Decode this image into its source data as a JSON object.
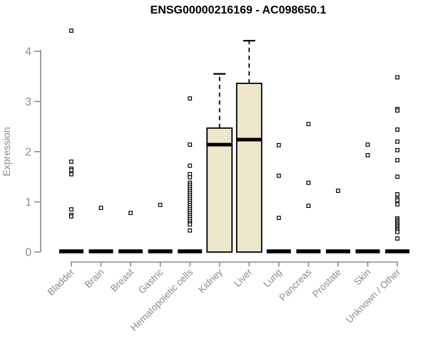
{
  "title": "ENSG00000216169 - AC098650.1",
  "chart_data": {
    "type": "boxplot",
    "title": "ENSG00000216169 - AC098650.1",
    "xlabel": "",
    "ylabel": "Expression",
    "ylim": [
      0,
      4.45
    ],
    "yticks": [
      0,
      1,
      2,
      3,
      4
    ],
    "grid": false,
    "legend": "none",
    "colors": {
      "box_fill": "#EDE7CC",
      "box_stroke": "#000000",
      "median": "#000000",
      "outlier_stroke": "#000000",
      "outlier_fill": "#ffffff",
      "axis": "#8B8B8B",
      "tick_label": "#8B8B8B",
      "title": "#000000",
      "background": "#ffffff"
    },
    "categories": [
      "Bladder",
      "Brain",
      "Breast",
      "Gastric",
      "Hematopoietic cells",
      "Kidney",
      "Liver",
      "Lung",
      "Pancreas",
      "Prostate",
      "Skin",
      "Unknown / Other"
    ],
    "series": [
      {
        "label": "Bladder",
        "median": 0,
        "q1": 0,
        "q3": 0,
        "whisker_low": 0,
        "whisker_high": 0,
        "collapsed": true,
        "outliers": [
          4.41,
          1.8,
          1.66,
          1.63,
          1.55,
          0.85,
          0.74,
          0.71
        ]
      },
      {
        "label": "Brain",
        "median": 0,
        "q1": 0,
        "q3": 0,
        "whisker_low": 0,
        "whisker_high": 0,
        "collapsed": true,
        "outliers": [
          0.88
        ]
      },
      {
        "label": "Breast",
        "median": 0,
        "q1": 0,
        "q3": 0,
        "whisker_low": 0,
        "whisker_high": 0,
        "collapsed": true,
        "outliers": [
          0.78
        ]
      },
      {
        "label": "Gastric",
        "median": 0,
        "q1": 0,
        "q3": 0,
        "whisker_low": 0,
        "whisker_high": 0,
        "collapsed": true,
        "outliers": [
          0.94
        ]
      },
      {
        "label": "Hematopoietic cells",
        "median": 0,
        "q1": 0,
        "q3": 0,
        "whisker_low": 0,
        "whisker_high": 0,
        "collapsed": true,
        "outliers": [
          3.06,
          2.14,
          1.72,
          1.55,
          1.49,
          1.38,
          1.34,
          1.3,
          1.26,
          1.22,
          1.18,
          1.14,
          1.1,
          1.06,
          1.02,
          0.98,
          0.94,
          0.9,
          0.86,
          0.82,
          0.78,
          0.74,
          0.7,
          0.66,
          0.62,
          0.58,
          0.55,
          0.43
        ]
      },
      {
        "label": "Kidney",
        "median": 2.14,
        "q1": 0,
        "q3": 2.47,
        "whisker_low": 0,
        "whisker_high": 3.55,
        "collapsed": false,
        "outliers": []
      },
      {
        "label": "Liver",
        "median": 2.24,
        "q1": 0,
        "q3": 3.36,
        "whisker_low": 0,
        "whisker_high": 4.21,
        "collapsed": false,
        "outliers": []
      },
      {
        "label": "Lung",
        "median": 0,
        "q1": 0,
        "q3": 0,
        "whisker_low": 0,
        "whisker_high": 0,
        "collapsed": true,
        "outliers": [
          2.13,
          1.52,
          0.68
        ]
      },
      {
        "label": "Pancreas",
        "median": 0,
        "q1": 0,
        "q3": 0,
        "whisker_low": 0,
        "whisker_high": 0,
        "collapsed": true,
        "outliers": [
          2.55,
          1.38,
          0.92
        ]
      },
      {
        "label": "Prostate",
        "median": 0,
        "q1": 0,
        "q3": 0,
        "whisker_low": 0,
        "whisker_high": 0,
        "collapsed": true,
        "outliers": [
          1.22
        ]
      },
      {
        "label": "Skin",
        "median": 0,
        "q1": 0,
        "q3": 0,
        "whisker_low": 0,
        "whisker_high": 0,
        "collapsed": true,
        "outliers": [
          2.14,
          1.93
        ]
      },
      {
        "label": "Unknown / Other",
        "median": 0,
        "q1": 0,
        "q3": 0,
        "whisker_low": 0,
        "whisker_high": 0,
        "collapsed": true,
        "outliers": [
          3.48,
          2.85,
          2.82,
          2.44,
          2.2,
          2.03,
          1.83,
          1.5,
          1.15,
          1.06,
          1.03,
          0.95,
          0.67,
          0.64,
          0.61,
          0.58,
          0.55,
          0.52,
          0.49,
          0.46,
          0.43,
          0.4,
          0.27
        ]
      }
    ]
  }
}
